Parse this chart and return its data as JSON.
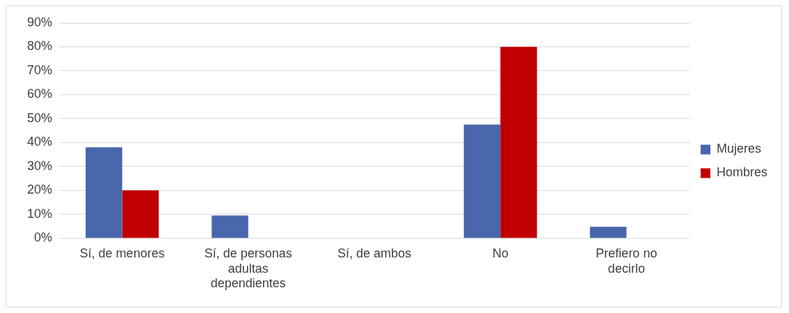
{
  "chart_data": {
    "type": "bar",
    "categories": [
      "Sí, de menores",
      "Sí, de personas adultas dependientes",
      "Sí, de ambos",
      "No",
      "Prefiero no decirlo"
    ],
    "series": [
      {
        "name": "Mujeres",
        "color": "#4a66ac",
        "values": [
          38,
          9.5,
          0,
          47.5,
          4.8
        ]
      },
      {
        "name": "Hombres",
        "color": "#c00000",
        "values": [
          20,
          0,
          0,
          80,
          0
        ]
      }
    ],
    "ylim": [
      0,
      90
    ],
    "yticks": [
      {
        "value": 0,
        "label": "0%"
      },
      {
        "value": 10,
        "label": "10%"
      },
      {
        "value": 20,
        "label": "20%"
      },
      {
        "value": 30,
        "label": "30%"
      },
      {
        "value": 40,
        "label": "40%"
      },
      {
        "value": 50,
        "label": "50%"
      },
      {
        "value": 60,
        "label": "60%"
      },
      {
        "value": 70,
        "label": "70%"
      },
      {
        "value": 80,
        "label": "80%"
      },
      {
        "value": 90,
        "label": "90%"
      }
    ],
    "grid": "y",
    "legend": "right"
  }
}
